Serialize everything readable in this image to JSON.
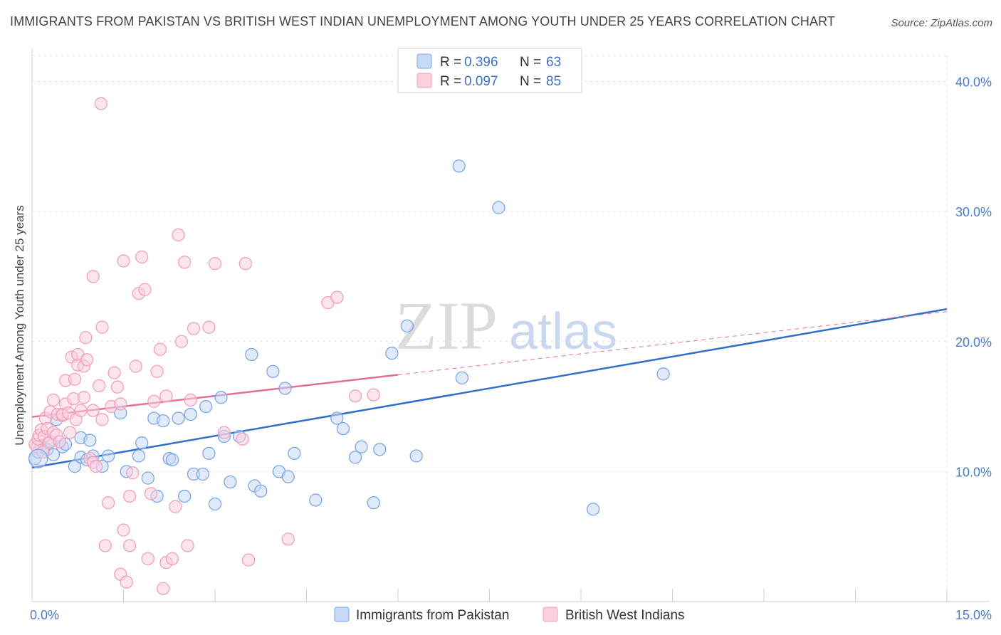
{
  "title": "IMMIGRANTS FROM PAKISTAN VS BRITISH WEST INDIAN UNEMPLOYMENT AMONG YOUTH UNDER 25 YEARS CORRELATION CHART",
  "source": "Source: ZipAtlas.com",
  "watermark": {
    "zip": "ZIP",
    "atlas": "atlas"
  },
  "chart_data": {
    "type": "scatter",
    "ylabel": "Unemployment Among Youth under 25 years",
    "xlim": [
      0,
      15
    ],
    "ylim": [
      0,
      42
    ],
    "x_tick_labels": [
      {
        "value": 0,
        "label": "0.0%"
      },
      {
        "value": 15,
        "label": "15.0%"
      }
    ],
    "y_tick_labels": [
      {
        "value": 10,
        "label": "10.0%"
      },
      {
        "value": 20,
        "label": "20.0%"
      },
      {
        "value": 30,
        "label": "30.0%"
      },
      {
        "value": 40,
        "label": "40.0%"
      }
    ],
    "x_minor_ticks": [
      0,
      1.5,
      3,
      4.5,
      6,
      7.5,
      9,
      10.5,
      12,
      13.5,
      15
    ],
    "grid": true,
    "legend": {
      "position": "top-center",
      "r_label": "R =",
      "n_label": "N =",
      "entries": [
        {
          "r": "0.396",
          "n": "63"
        },
        {
          "r": "0.097",
          "n": "85"
        }
      ]
    },
    "series": [
      {
        "name": "Immigrants from Pakistan",
        "color": "#7ba7e6",
        "fill": "#c6d9f5",
        "line_color": "#2f6fcc",
        "trend": {
          "x0": 0,
          "y0": 10.3,
          "x1": 15,
          "y1": 22.5,
          "dash_from": null
        },
        "points": [
          [
            0.05,
            11.0
          ],
          [
            0.1,
            11.5
          ],
          [
            0.15,
            12.0
          ],
          [
            0.2,
            11.8
          ],
          [
            0.25,
            11.7
          ],
          [
            0.3,
            12.3
          ],
          [
            0.35,
            11.3
          ],
          [
            0.4,
            14.0
          ],
          [
            0.5,
            11.9
          ],
          [
            0.55,
            12.1
          ],
          [
            0.7,
            10.4
          ],
          [
            0.8,
            12.6
          ],
          [
            0.8,
            11.1
          ],
          [
            0.9,
            10.9
          ],
          [
            0.95,
            12.4
          ],
          [
            1.0,
            11.2
          ],
          [
            1.15,
            10.4
          ],
          [
            1.25,
            11.2
          ],
          [
            1.45,
            14.5
          ],
          [
            1.55,
            10.0
          ],
          [
            1.75,
            11.2
          ],
          [
            1.8,
            12.2
          ],
          [
            1.9,
            9.5
          ],
          [
            2.0,
            14.1
          ],
          [
            2.05,
            8.1
          ],
          [
            2.15,
            13.9
          ],
          [
            2.25,
            11.0
          ],
          [
            2.3,
            10.9
          ],
          [
            2.4,
            14.1
          ],
          [
            2.5,
            8.1
          ],
          [
            2.6,
            14.4
          ],
          [
            2.65,
            9.8
          ],
          [
            2.8,
            9.8
          ],
          [
            2.85,
            15.0
          ],
          [
            2.9,
            11.4
          ],
          [
            3.0,
            7.5
          ],
          [
            3.1,
            15.7
          ],
          [
            3.15,
            12.7
          ],
          [
            3.25,
            9.2
          ],
          [
            3.4,
            12.7
          ],
          [
            3.6,
            19.0
          ],
          [
            3.65,
            8.9
          ],
          [
            3.75,
            8.5
          ],
          [
            3.95,
            17.7
          ],
          [
            4.05,
            10.0
          ],
          [
            4.15,
            16.4
          ],
          [
            4.2,
            9.6
          ],
          [
            4.3,
            11.4
          ],
          [
            4.65,
            7.8
          ],
          [
            5.0,
            14.1
          ],
          [
            5.1,
            13.3
          ],
          [
            5.3,
            11.1
          ],
          [
            5.4,
            11.9
          ],
          [
            5.6,
            7.6
          ],
          [
            5.7,
            11.7
          ],
          [
            5.9,
            19.1
          ],
          [
            6.15,
            21.2
          ],
          [
            6.3,
            11.2
          ],
          [
            7.0,
            33.5
          ],
          [
            7.05,
            17.2
          ],
          [
            7.65,
            30.3
          ],
          [
            9.2,
            7.1
          ],
          [
            10.35,
            17.5
          ]
        ]
      },
      {
        "name": "British West Indians",
        "color": "#f0a0bd",
        "fill": "#f9d0de",
        "line_color": "#e07099",
        "trend": {
          "x0": 0,
          "y0": 14.2,
          "x1": 15,
          "y1": 22.3,
          "dash_from": 6
        },
        "points": [
          [
            0.05,
            12.1
          ],
          [
            0.08,
            11.9
          ],
          [
            0.1,
            12.5
          ],
          [
            0.12,
            12.8
          ],
          [
            0.15,
            13.2
          ],
          [
            0.18,
            11.5
          ],
          [
            0.2,
            12.7
          ],
          [
            0.22,
            14.1
          ],
          [
            0.25,
            13.3
          ],
          [
            0.28,
            12.2
          ],
          [
            0.3,
            14.6
          ],
          [
            0.35,
            13.0
          ],
          [
            0.35,
            15.5
          ],
          [
            0.4,
            12.8
          ],
          [
            0.42,
            14.4
          ],
          [
            0.45,
            12.3
          ],
          [
            0.5,
            14.3
          ],
          [
            0.5,
            14.4
          ],
          [
            0.55,
            15.2
          ],
          [
            0.55,
            17.0
          ],
          [
            0.6,
            14.5
          ],
          [
            0.62,
            13.0
          ],
          [
            0.65,
            18.8
          ],
          [
            0.68,
            15.6
          ],
          [
            0.7,
            17.1
          ],
          [
            0.72,
            14.0
          ],
          [
            0.75,
            19.0
          ],
          [
            0.75,
            18.2
          ],
          [
            0.8,
            14.7
          ],
          [
            0.85,
            15.7
          ],
          [
            0.85,
            18.1
          ],
          [
            0.88,
            20.3
          ],
          [
            0.9,
            18.6
          ],
          [
            0.95,
            11.0
          ],
          [
            1.0,
            14.7
          ],
          [
            1.0,
            10.7
          ],
          [
            1.0,
            25.0
          ],
          [
            1.05,
            10.4
          ],
          [
            1.1,
            16.6
          ],
          [
            1.15,
            21.1
          ],
          [
            1.15,
            14.0
          ],
          [
            1.2,
            4.3
          ],
          [
            1.25,
            7.6
          ],
          [
            1.3,
            15.0
          ],
          [
            1.35,
            17.6
          ],
          [
            1.4,
            16.5
          ],
          [
            1.45,
            15.2
          ],
          [
            1.45,
            2.1
          ],
          [
            1.5,
            26.2
          ],
          [
            1.5,
            5.5
          ],
          [
            1.55,
            1.5
          ],
          [
            1.6,
            4.3
          ],
          [
            1.6,
            8.1
          ],
          [
            1.65,
            9.9
          ],
          [
            1.7,
            18.1
          ],
          [
            1.75,
            23.7
          ],
          [
            1.8,
            26.5
          ],
          [
            1.85,
            24.0
          ],
          [
            1.9,
            3.3
          ],
          [
            1.95,
            8.3
          ],
          [
            2.0,
            15.4
          ],
          [
            2.05,
            17.7
          ],
          [
            2.1,
            19.4
          ],
          [
            2.15,
            1.0
          ],
          [
            2.2,
            3.0
          ],
          [
            2.2,
            15.8
          ],
          [
            2.3,
            3.3
          ],
          [
            2.35,
            7.3
          ],
          [
            2.4,
            28.2
          ],
          [
            2.45,
            20.0
          ],
          [
            2.5,
            26.1
          ],
          [
            2.55,
            4.3
          ],
          [
            2.6,
            15.5
          ],
          [
            2.65,
            21.0
          ],
          [
            2.9,
            21.1
          ],
          [
            3.0,
            26.0
          ],
          [
            3.15,
            13.0
          ],
          [
            3.45,
            12.5
          ],
          [
            3.5,
            26.0
          ],
          [
            3.55,
            3.2
          ],
          [
            4.2,
            4.8
          ],
          [
            4.85,
            23.0
          ],
          [
            5.0,
            23.4
          ],
          [
            5.3,
            15.8
          ],
          [
            5.6,
            15.9
          ]
        ]
      }
    ],
    "extra_outlier": {
      "series": "British West Indians",
      "x": 1.13,
      "y": 38.3
    }
  }
}
